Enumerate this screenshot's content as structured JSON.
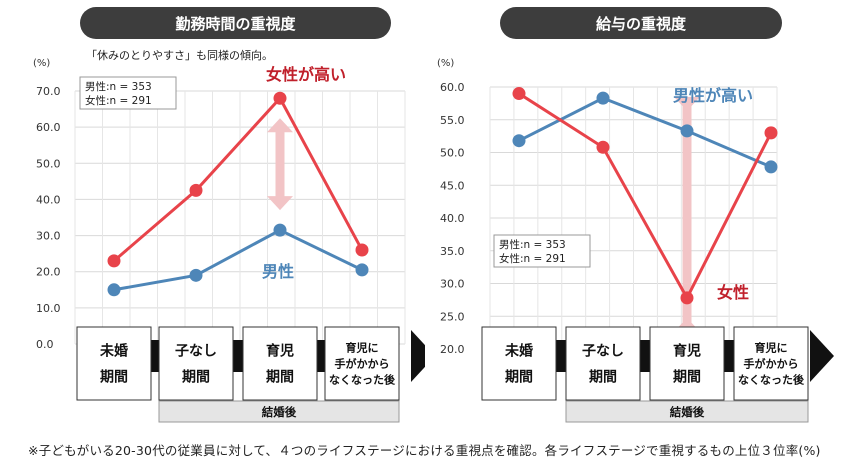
{
  "footnote": "※子どもがいる20-30代の従業員に対して、４つのライフステージにおける重視点を確認。各ライフステージで重視するもの上位３位率(%)",
  "stages": {
    "labels": [
      [
        "未婚",
        "期間"
      ],
      [
        "子なし",
        "期間"
      ],
      [
        "育児",
        "期間"
      ],
      [
        "育児に",
        "手がかから",
        "なくなった後"
      ]
    ],
    "married_label": "結婚後"
  },
  "colors": {
    "male": "#4e86b8",
    "female": "#e8434a",
    "arrow": "#f2c4c6",
    "female_text": "#c0202b"
  },
  "chart_data": [
    {
      "type": "line",
      "title": "勤務時間の重視度",
      "subtitle": "「休みのとりやすさ」も同様の傾向。",
      "unit_label": "(%)",
      "categories": [
        "未婚期間",
        "子なし期間",
        "育児期間",
        "育児に手がかからなくなった後"
      ],
      "ylim": [
        0,
        70
      ],
      "yticks": [
        "0.0",
        "10.0",
        "20.0",
        "30.0",
        "40.0",
        "50.0",
        "60.0",
        "70.0"
      ],
      "legend_lines": [
        "男性:n = 353",
        "女性:n = 291"
      ],
      "series": [
        {
          "name": "男性",
          "values": [
            15.0,
            19.0,
            31.5,
            20.5
          ]
        },
        {
          "name": "女性",
          "values": [
            23.0,
            42.5,
            68.0,
            26.0
          ]
        }
      ],
      "annotations": {
        "male": "男性",
        "female": "女性が高い"
      }
    },
    {
      "type": "line",
      "title": "給与の重視度",
      "unit_label": "(%)",
      "categories": [
        "未婚期間",
        "子なし期間",
        "育児期間",
        "育児に手がかからなくなった後"
      ],
      "ylim": [
        20,
        60
      ],
      "yticks": [
        "20.0",
        "25.0",
        "30.0",
        "35.0",
        "40.0",
        "45.0",
        "50.0",
        "55.0",
        "60.0"
      ],
      "legend_lines": [
        "男性:n = 353",
        "女性:n = 291"
      ],
      "series": [
        {
          "name": "男性",
          "values": [
            51.8,
            58.3,
            53.3,
            47.8
          ]
        },
        {
          "name": "女性",
          "values": [
            59.0,
            50.8,
            27.8,
            53.0
          ]
        }
      ],
      "annotations": {
        "male": "男性が高い",
        "female": "女性"
      }
    }
  ]
}
